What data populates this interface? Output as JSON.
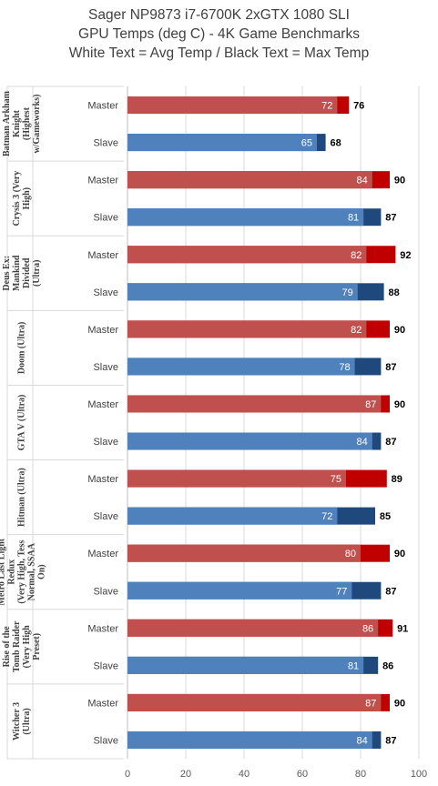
{
  "chart_data": {
    "type": "bar",
    "orientation": "horizontal",
    "title": [
      "Sager NP9873 i7-6700K 2xGTX 1080 SLI",
      "GPU Temps (deg C) - 4K Game Benchmarks",
      "White Text = Avg Temp / Black Text = Max Temp"
    ],
    "xlim": [
      0,
      100
    ],
    "x_ticks": [
      "0",
      "20",
      "40",
      "60",
      "80",
      "100"
    ],
    "grid": true,
    "colors": {
      "master_avg": "#C0504D",
      "master_max": "#C00000",
      "slave_avg": "#4F81BD",
      "slave_max": "#1F497D"
    },
    "groups": [
      {
        "name": [
          "Batman Arkham",
          "Knight",
          "(Highest",
          "w/Gameworks)"
        ],
        "rows": [
          {
            "label": "Master",
            "avg": 72,
            "max": 76
          },
          {
            "label": "Slave",
            "avg": 65,
            "max": 68
          }
        ]
      },
      {
        "name": [
          "Crysis 3 (Very",
          "High)"
        ],
        "rows": [
          {
            "label": "Master",
            "avg": 84,
            "max": 90
          },
          {
            "label": "Slave",
            "avg": 81,
            "max": 87
          }
        ]
      },
      {
        "name": [
          "Deus Ex:",
          "Mankind",
          "Divided",
          "(Ultra)"
        ],
        "rows": [
          {
            "label": "Master",
            "avg": 82,
            "max": 92
          },
          {
            "label": "Slave",
            "avg": 79,
            "max": 88
          }
        ]
      },
      {
        "name": [
          "Doom (Ultra)"
        ],
        "rows": [
          {
            "label": "Master",
            "avg": 82,
            "max": 90
          },
          {
            "label": "Slave",
            "avg": 78,
            "max": 87
          }
        ]
      },
      {
        "name": [
          "GTA V (Ultra)"
        ],
        "rows": [
          {
            "label": "Master",
            "avg": 87,
            "max": 90
          },
          {
            "label": "Slave",
            "avg": 84,
            "max": 87
          }
        ]
      },
      {
        "name": [
          "Hitman (Ultra)"
        ],
        "rows": [
          {
            "label": "Master",
            "avg": 75,
            "max": 89
          },
          {
            "label": "Slave",
            "avg": 72,
            "max": 85
          }
        ]
      },
      {
        "name": [
          "Metro Last Light",
          "Redux",
          "(Very High, Tess",
          "Normal, SSAA",
          "On)"
        ],
        "rows": [
          {
            "label": "Master",
            "avg": 80,
            "max": 90
          },
          {
            "label": "Slave",
            "avg": 77,
            "max": 87
          }
        ]
      },
      {
        "name": [
          "Rise of the",
          "Tomb Raider",
          "(Very High",
          "Preset)"
        ],
        "rows": [
          {
            "label": "Master",
            "avg": 86,
            "max": 91
          },
          {
            "label": "Slave",
            "avg": 81,
            "max": 86
          }
        ]
      },
      {
        "name": [
          "Witcher 3",
          "(Ultra)"
        ],
        "rows": [
          {
            "label": "Master",
            "avg": 87,
            "max": 90
          },
          {
            "label": "Slave",
            "avg": 84,
            "max": 87
          }
        ]
      }
    ]
  }
}
